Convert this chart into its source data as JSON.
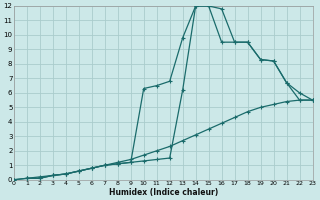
{
  "xlabel": "Humidex (Indice chaleur)",
  "bg_color": "#cce8e8",
  "grid_color": "#aacccc",
  "line_color": "#1a6b6b",
  "xlim": [
    0,
    23
  ],
  "ylim": [
    0,
    12
  ],
  "xticks": [
    0,
    1,
    2,
    3,
    4,
    5,
    6,
    7,
    8,
    9,
    10,
    11,
    12,
    13,
    14,
    15,
    16,
    17,
    18,
    19,
    20,
    21,
    22,
    23
  ],
  "yticks": [
    0,
    1,
    2,
    3,
    4,
    5,
    6,
    7,
    8,
    9,
    10,
    11,
    12
  ],
  "line1_x": [
    0,
    1,
    2,
    3,
    4,
    5,
    6,
    7,
    8,
    9,
    10,
    11,
    12,
    13,
    14,
    15,
    16,
    17,
    18,
    19,
    20,
    21,
    22,
    23
  ],
  "line1_y": [
    0.0,
    0.1,
    0.2,
    0.3,
    0.4,
    0.6,
    0.8,
    1.0,
    1.2,
    1.4,
    1.7,
    2.0,
    2.3,
    2.7,
    3.1,
    3.5,
    3.9,
    4.3,
    4.7,
    5.0,
    5.2,
    5.4,
    5.5,
    5.5
  ],
  "line2_x": [
    0,
    1,
    2,
    3,
    4,
    5,
    6,
    7,
    8,
    9,
    10,
    11,
    12,
    13,
    14,
    15,
    16,
    17,
    18,
    19,
    20,
    21,
    22,
    23
  ],
  "line2_y": [
    0.0,
    0.1,
    0.1,
    0.3,
    0.4,
    0.6,
    0.8,
    1.0,
    1.1,
    1.2,
    1.3,
    1.4,
    1.5,
    6.2,
    12.0,
    12.0,
    11.8,
    9.5,
    9.5,
    8.3,
    8.2,
    6.7,
    6.0,
    5.5
  ],
  "line3_x": [
    1,
    2,
    3,
    4,
    5,
    6,
    7,
    8,
    9,
    10,
    11,
    12,
    13,
    14,
    15,
    16,
    17,
    18,
    19,
    20,
    21,
    22,
    23
  ],
  "line3_y": [
    0.1,
    0.1,
    0.3,
    0.4,
    0.6,
    0.8,
    1.0,
    1.1,
    1.2,
    6.3,
    6.5,
    6.8,
    9.8,
    12.0,
    12.0,
    9.5,
    9.5,
    9.5,
    8.3,
    8.2,
    6.7,
    5.5,
    5.5
  ]
}
